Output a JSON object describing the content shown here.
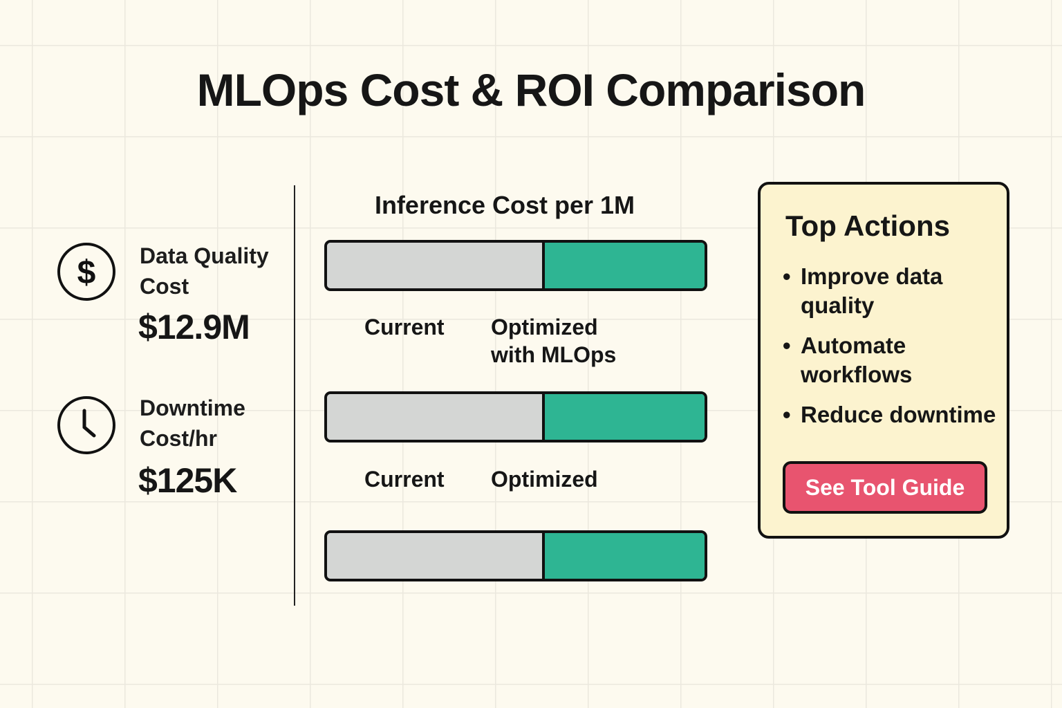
{
  "title": "MLOps Cost & ROI Comparison",
  "metrics": [
    {
      "icon": "dollar-icon",
      "label_lines": [
        "Data Quality",
        "Cost"
      ],
      "value": "$12.9M"
    },
    {
      "icon": "clock-icon",
      "label_lines": [
        "Downtime",
        "Cost/hr"
      ],
      "value": "$125K"
    }
  ],
  "chart_data": {
    "type": "bar",
    "title": "Inference Cost per 1M",
    "bars": [
      {
        "current_share": 0.57,
        "optimized_share": 0.43,
        "labels": [
          "Current",
          "Optimized with MLOps"
        ]
      },
      {
        "current_share": 0.57,
        "optimized_share": 0.43,
        "labels": [
          "Current",
          "Optimized"
        ]
      },
      {
        "current_share": 0.57,
        "optimized_share": 0.43
      }
    ],
    "colors": {
      "current": "#d4d6d4",
      "optimized": "#2eb593"
    }
  },
  "labels": {
    "b1_current": "Current",
    "b1_opt_line1": "Optimized",
    "b1_opt_line2": "with MLOps",
    "b2_current": "Current",
    "b2_opt": "Optimized"
  },
  "panel": {
    "title": "Top Actions",
    "actions": [
      [
        "Improve data",
        "quality"
      ],
      [
        "Automate",
        "workflows"
      ],
      [
        "Reduce downtime"
      ]
    ],
    "bullet": "•",
    "button": "See Tool Guide",
    "button_color": "#e8546f"
  }
}
